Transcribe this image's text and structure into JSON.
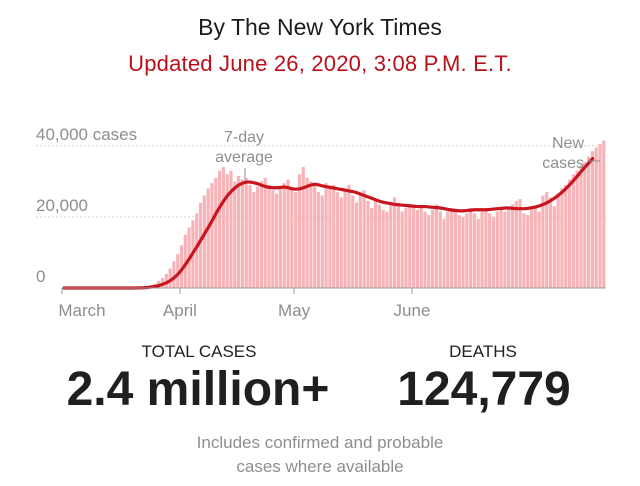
{
  "header": {
    "byline": "By The New York Times",
    "updated": "Updated June 26, 2020, 3:08 P.M. E.T."
  },
  "chart_data": {
    "type": "bar",
    "y_ticks": [
      {
        "value": 40000,
        "label": "40,000 cases"
      },
      {
        "value": 20000,
        "label": "20,000"
      },
      {
        "value": 0,
        "label": "0"
      }
    ],
    "x_ticks": [
      "March",
      "April",
      "May",
      "June"
    ],
    "ylim": [
      0,
      45000
    ],
    "grid": true,
    "annotations": {
      "average_label": [
        "7-day",
        "average"
      ],
      "new_cases_label": [
        "New",
        "cases"
      ]
    },
    "series": [
      {
        "kind": "bars",
        "values": [
          0,
          0,
          0,
          0,
          0,
          0,
          0,
          0,
          0,
          0,
          0,
          0,
          0,
          0,
          0,
          0,
          0,
          0,
          0,
          50,
          100,
          200,
          400,
          800,
          1200,
          2000,
          2800,
          4000,
          5500,
          7500,
          9500,
          12000,
          15000,
          17000,
          19000,
          21000,
          24000,
          26000,
          28000,
          29500,
          31000,
          33000,
          34000,
          32000,
          33000,
          30000,
          31500,
          30500,
          31000,
          29000,
          27000,
          28500,
          30000,
          31000,
          29000,
          27500,
          26500,
          28000,
          29500,
          30500,
          28000,
          27000,
          32000,
          34000,
          31000,
          30000,
          29000,
          27000,
          26000,
          29500,
          28500,
          29000,
          27000,
          25500,
          28000,
          29000,
          26000,
          24000,
          26500,
          27500,
          24500,
          22500,
          25000,
          23500,
          22000,
          21500,
          24000,
          25500,
          24000,
          21500,
          22500,
          23000,
          23500,
          22000,
          23000,
          21500,
          20500,
          22000,
          23500,
          21500,
          19500,
          21500,
          22500,
          22000,
          20500,
          20000,
          21000,
          22500,
          21000,
          19500,
          21500,
          22000,
          21000,
          20000,
          21500,
          22500,
          21500,
          22000,
          23500,
          24500,
          25000,
          21000,
          20500,
          22500,
          23000,
          21500,
          26000,
          27000,
          25500,
          23000,
          26500,
          28000,
          29000,
          30500,
          32000,
          33000,
          34500,
          35500,
          37000,
          38500,
          39500,
          40500,
          41500
        ]
      },
      {
        "kind": "line",
        "name": "7-day average",
        "values": [
          0,
          0,
          0,
          0,
          0,
          0,
          0,
          0,
          0,
          0,
          0,
          0,
          0,
          0,
          0,
          0,
          0,
          0,
          0,
          20,
          40,
          80,
          150,
          280,
          450,
          700,
          1050,
          1500,
          2100,
          2900,
          3900,
          5200,
          6700,
          8300,
          10000,
          11700,
          13500,
          15300,
          17100,
          19000,
          21000,
          22800,
          24500,
          26000,
          27200,
          28200,
          29000,
          29500,
          29800,
          29800,
          29600,
          29300,
          28900,
          28500,
          28300,
          28200,
          28200,
          28300,
          28400,
          28200,
          27900,
          27800,
          27900,
          28200,
          28600,
          29000,
          29200,
          29000,
          28700,
          28500,
          28300,
          28100,
          27900,
          27700,
          27500,
          27300,
          27100,
          26800,
          26400,
          26000,
          25600,
          25200,
          24800,
          24400,
          24100,
          23900,
          23700,
          23500,
          23400,
          23300,
          23200,
          23100,
          23000,
          22900,
          22900,
          22900,
          22800,
          22700,
          22600,
          22500,
          22300,
          22100,
          21900,
          21800,
          21700,
          21700,
          21800,
          21900,
          22000,
          22000,
          22000,
          22000,
          22100,
          22200,
          22300,
          22400,
          22500,
          22500,
          22400,
          22300,
          22300,
          22300,
          22400,
          22600,
          22800,
          23100,
          23500,
          24000,
          24600,
          25300,
          26100,
          27000,
          28000,
          29100,
          30300,
          31500,
          32800,
          34000,
          35200,
          36400
        ]
      }
    ]
  },
  "stats": {
    "cases_label": "TOTAL CASES",
    "cases_value": "2.4 million+",
    "deaths_label": "DEATHS",
    "deaths_value": "124,779"
  },
  "footnote": [
    "Includes confirmed and probable",
    "cases where available"
  ],
  "colors": {
    "bar": "#f7b4b8",
    "line": "#c9151f",
    "accent_text": "#b8111a"
  }
}
